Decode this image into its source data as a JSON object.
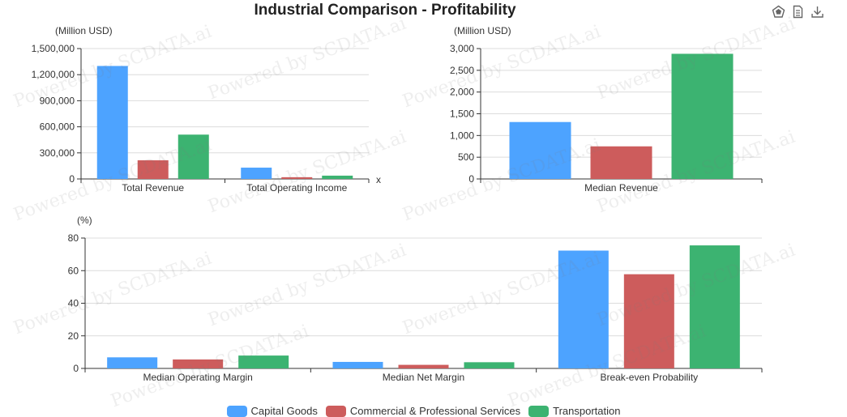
{
  "title": "Industrial Comparison - Profitability",
  "toolbar": [
    {
      "icon": "data-view-icon"
    },
    {
      "icon": "document-icon"
    },
    {
      "icon": "download-icon"
    }
  ],
  "watermark": "Powered by SCDATA.ai",
  "colors": {
    "Capital Goods": "#4da3ff",
    "Commercial & Professional Services": "#cd5c5c",
    "Transportation": "#3cb371"
  },
  "legend": [
    "Capital Goods",
    "Commercial & Professional Services",
    "Transportation"
  ],
  "chart_data": [
    {
      "type": "bar",
      "unit_label": "(Million USD)",
      "categories": [
        "Total Revenue",
        "Total Operating Income"
      ],
      "x_axis_name": "x",
      "ylim": [
        0,
        1500000
      ],
      "ticks": [
        "0",
        "300,000",
        "600,000",
        "900,000",
        "1,200,000",
        "1,500,000"
      ],
      "series": [
        {
          "name": "Capital Goods",
          "values": [
            1300000,
            130000
          ]
        },
        {
          "name": "Commercial & Professional Services",
          "values": [
            215000,
            20000
          ]
        },
        {
          "name": "Transportation",
          "values": [
            510000,
            38000
          ]
        }
      ],
      "grid": true
    },
    {
      "type": "bar",
      "unit_label": "(Million USD)",
      "categories": [
        "Median Revenue"
      ],
      "ylim": [
        0,
        3000
      ],
      "ticks": [
        "0",
        "500",
        "1,000",
        "1,500",
        "2,000",
        "2,500",
        "3,000"
      ],
      "series": [
        {
          "name": "Capital Goods",
          "values": [
            1310
          ]
        },
        {
          "name": "Commercial & Professional Services",
          "values": [
            750
          ]
        },
        {
          "name": "Transportation",
          "values": [
            2880
          ]
        }
      ],
      "grid": true
    },
    {
      "type": "bar",
      "unit_label": "(%)",
      "categories": [
        "Median Operating Margin",
        "Median Net Margin",
        "Break-even Probability"
      ],
      "ylim": [
        0,
        80
      ],
      "ticks": [
        "0",
        "20",
        "40",
        "60",
        "80"
      ],
      "series": [
        {
          "name": "Capital Goods",
          "values": [
            6.8,
            4.0,
            72.3
          ]
        },
        {
          "name": "Commercial & Professional Services",
          "values": [
            5.5,
            2.2,
            57.8
          ]
        },
        {
          "name": "Transportation",
          "values": [
            7.9,
            3.8,
            75.5
          ]
        }
      ],
      "grid": true
    }
  ]
}
